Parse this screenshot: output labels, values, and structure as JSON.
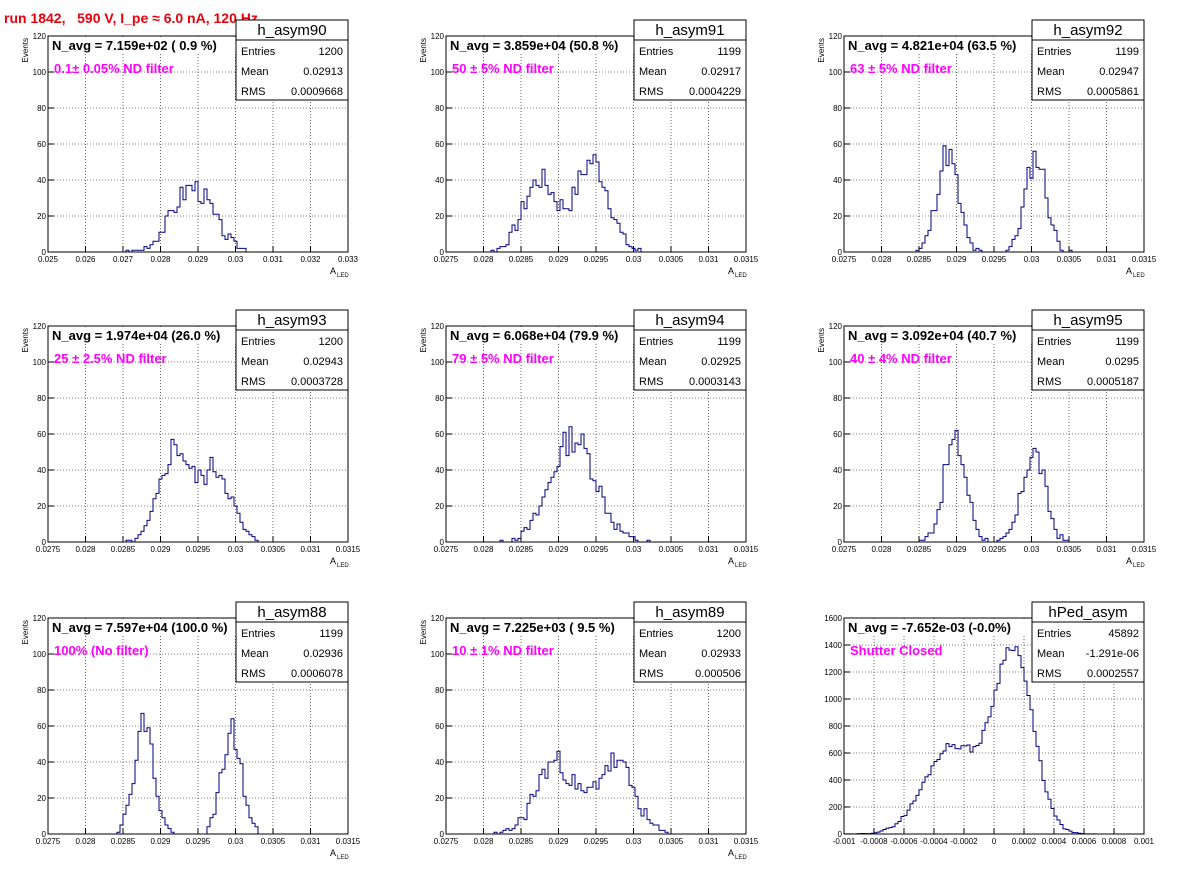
{
  "canvas_title": "run 1842,   590 V, I_pe ≈ 6.0 nA, 120 Hz",
  "colors": {
    "title": "#e8000b",
    "annotation": "#ff00ff",
    "hist_line": "#000080",
    "frame": "#000000"
  },
  "chart_data": [
    {
      "type": "histogram",
      "histname": "h_asym90",
      "title_text": "N_avg = 7.159e+02 ( 0.9 %)",
      "annotation": "0.1± 0.05% ND filter",
      "stats": {
        "entries_label": "Entries",
        "entries": "1200",
        "mean_label": "Mean",
        "mean": "0.02913",
        "rms_label": "RMS",
        "rms": "0.0009668"
      },
      "ylabel": "Events",
      "xlabel": "A",
      "xlabel_sub": "LED",
      "xlim": [
        0.025,
        0.033
      ],
      "ylim": [
        0,
        120
      ],
      "xticks": [
        0.025,
        0.026,
        0.027,
        0.028,
        0.029,
        0.03,
        0.031,
        0.032,
        0.033
      ],
      "xtick_labels": [
        "0.025",
        "0.026",
        "0.027",
        "0.028",
        "0.029",
        "0.03",
        "0.031",
        "0.032",
        "0.033"
      ],
      "yticks": [
        0,
        20,
        40,
        60,
        80,
        100,
        120
      ],
      "ytick_labels": [
        "0",
        "20",
        "40",
        "60",
        "80",
        "100",
        "120"
      ],
      "peaks": [
        {
          "mu": 0.02885,
          "sigma": 0.00055,
          "amp": 36
        }
      ],
      "noise_seed": 3,
      "bins": 100
    },
    {
      "type": "histogram",
      "histname": "h_asym91",
      "title_text": "N_avg = 3.859e+04 (50.8 %)",
      "annotation": "50 ± 5% ND filter",
      "stats": {
        "entries_label": "Entries",
        "entries": "1199",
        "mean_label": "Mean",
        "mean": "0.02917",
        "rms_label": "RMS",
        "rms": "0.0004229"
      },
      "ylabel": "Events",
      "xlabel": "A",
      "xlabel_sub": "LED",
      "xlim": [
        0.0275,
        0.0315
      ],
      "ylim": [
        0,
        120
      ],
      "xticks": [
        0.0275,
        0.028,
        0.0285,
        0.029,
        0.0295,
        0.03,
        0.0305,
        0.031,
        0.0315
      ],
      "xtick_labels": [
        "0.0275",
        "0.028",
        "0.0285",
        "0.029",
        "0.0295",
        "0.03",
        "0.0305",
        "0.031",
        "0.0315"
      ],
      "yticks": [
        0,
        20,
        40,
        60,
        80,
        100,
        120
      ],
      "ytick_labels": [
        "0",
        "20",
        "40",
        "60",
        "80",
        "100",
        "120"
      ],
      "peaks": [
        {
          "mu": 0.02875,
          "sigma": 0.00022,
          "amp": 40
        },
        {
          "mu": 0.02945,
          "sigma": 0.00022,
          "amp": 50
        }
      ],
      "noise_seed": 7,
      "bins": 100
    },
    {
      "type": "histogram",
      "histname": "h_asym92",
      "title_text": "N_avg = 4.821e+04 (63.5 %)",
      "annotation": "63 ± 5% ND filter",
      "stats": {
        "entries_label": "Entries",
        "entries": "1199",
        "mean_label": "Mean",
        "mean": "0.02947",
        "rms_label": "RMS",
        "rms": "0.0005861"
      },
      "ylabel": "Events",
      "xlabel": "A",
      "xlabel_sub": "LED",
      "xlim": [
        0.0275,
        0.0315
      ],
      "ylim": [
        0,
        120
      ],
      "xticks": [
        0.0275,
        0.028,
        0.0285,
        0.029,
        0.0295,
        0.03,
        0.0305,
        0.031,
        0.0315
      ],
      "xtick_labels": [
        "0.0275",
        "0.028",
        "0.0285",
        "0.029",
        "0.0295",
        "0.03",
        "0.0305",
        "0.031",
        "0.0315"
      ],
      "yticks": [
        0,
        20,
        40,
        60,
        80,
        100,
        120
      ],
      "ytick_labels": [
        "0",
        "20",
        "40",
        "60",
        "80",
        "100",
        "120"
      ],
      "peaks": [
        {
          "mu": 0.02888,
          "sigma": 0.00014,
          "amp": 55
        },
        {
          "mu": 0.03006,
          "sigma": 0.00014,
          "amp": 53
        }
      ],
      "noise_seed": 11,
      "bins": 100
    },
    {
      "type": "histogram",
      "histname": "h_asym93",
      "title_text": "N_avg = 1.974e+04 (26.0 %)",
      "annotation": "25 ± 2.5% ND filter",
      "stats": {
        "entries_label": "Entries",
        "entries": "1200",
        "mean_label": "Mean",
        "mean": "0.02943",
        "rms_label": "RMS",
        "rms": "0.0003728"
      },
      "ylabel": "Events",
      "xlabel": "A",
      "xlabel_sub": "LED",
      "xlim": [
        0.0275,
        0.0315
      ],
      "ylim": [
        0,
        120
      ],
      "xticks": [
        0.0275,
        0.028,
        0.0285,
        0.029,
        0.0295,
        0.03,
        0.0305,
        0.031,
        0.0315
      ],
      "xtick_labels": [
        "0.0275",
        "0.028",
        "0.0285",
        "0.029",
        "0.0295",
        "0.03",
        "0.0305",
        "0.031",
        "0.0315"
      ],
      "yticks": [
        0,
        20,
        40,
        60,
        80,
        100,
        120
      ],
      "ytick_labels": [
        "0",
        "20",
        "40",
        "60",
        "80",
        "100",
        "120"
      ],
      "peaks": [
        {
          "mu": 0.0292,
          "sigma": 0.0002,
          "amp": 52
        },
        {
          "mu": 0.02975,
          "sigma": 0.0002,
          "amp": 40
        }
      ],
      "noise_seed": 5,
      "bins": 100
    },
    {
      "type": "histogram",
      "histname": "h_asym94",
      "title_text": "N_avg = 6.068e+04 (79.9 %)",
      "annotation": "79 ± 5% ND filter",
      "stats": {
        "entries_label": "Entries",
        "entries": "1199",
        "mean_label": "Mean",
        "mean": "0.02925",
        "rms_label": "RMS",
        "rms": "0.0003143"
      },
      "ylabel": "Events",
      "xlabel": "A",
      "xlabel_sub": "LED",
      "xlim": [
        0.0275,
        0.0315
      ],
      "ylim": [
        0,
        120
      ],
      "xticks": [
        0.0275,
        0.028,
        0.0285,
        0.029,
        0.0295,
        0.03,
        0.0305,
        0.031,
        0.0315
      ],
      "xtick_labels": [
        "0.0275",
        "0.028",
        "0.0285",
        "0.029",
        "0.0295",
        "0.03",
        "0.0305",
        "0.031",
        "0.0315"
      ],
      "yticks": [
        0,
        20,
        40,
        60,
        80,
        100,
        120
      ],
      "ytick_labels": [
        "0",
        "20",
        "40",
        "60",
        "80",
        "100",
        "120"
      ],
      "peaks": [
        {
          "mu": 0.0292,
          "sigma": 0.0003,
          "amp": 58
        }
      ],
      "noise_seed": 13,
      "bins": 100
    },
    {
      "type": "histogram",
      "histname": "h_asym95",
      "title_text": "N_avg = 3.092e+04 (40.7 %)",
      "annotation": "40 ± 4% ND filter",
      "stats": {
        "entries_label": "Entries",
        "entries": "1199",
        "mean_label": "Mean",
        "mean": "0.0295",
        "rms_label": "RMS",
        "rms": "0.0005187"
      },
      "ylabel": "Events",
      "xlabel": "A",
      "xlabel_sub": "LED",
      "xlim": [
        0.0275,
        0.0315
      ],
      "ylim": [
        0,
        120
      ],
      "xticks": [
        0.0275,
        0.028,
        0.0285,
        0.029,
        0.0295,
        0.03,
        0.0305,
        0.031,
        0.0315
      ],
      "xtick_labels": [
        "0.0275",
        "0.028",
        "0.0285",
        "0.029",
        "0.0295",
        "0.03",
        "0.0305",
        "0.031",
        "0.0315"
      ],
      "yticks": [
        0,
        20,
        40,
        60,
        80,
        100,
        120
      ],
      "ytick_labels": [
        "0",
        "20",
        "40",
        "60",
        "80",
        "100",
        "120"
      ],
      "peaks": [
        {
          "mu": 0.02898,
          "sigma": 0.00015,
          "amp": 56
        },
        {
          "mu": 0.03003,
          "sigma": 0.00015,
          "amp": 50
        }
      ],
      "noise_seed": 17,
      "bins": 100
    },
    {
      "type": "histogram",
      "histname": "h_asym88",
      "title_text": "N_avg = 7.597e+04 (100.0 %)",
      "annotation": "100% (No filter)",
      "stats": {
        "entries_label": "Entries",
        "entries": "1199",
        "mean_label": "Mean",
        "mean": "0.02936",
        "rms_label": "RMS",
        "rms": "0.0006078"
      },
      "ylabel": "Events",
      "xlabel": "A",
      "xlabel_sub": "LED",
      "xlim": [
        0.0275,
        0.0315
      ],
      "ylim": [
        0,
        120
      ],
      "xticks": [
        0.0275,
        0.028,
        0.0285,
        0.029,
        0.0295,
        0.03,
        0.0305,
        0.031,
        0.0315
      ],
      "xtick_labels": [
        "0.0275",
        "0.028",
        "0.0285",
        "0.029",
        "0.0295",
        "0.03",
        "0.0305",
        "0.031",
        "0.0315"
      ],
      "yticks": [
        0,
        20,
        40,
        60,
        80,
        100,
        120
      ],
      "ytick_labels": [
        "0",
        "20",
        "40",
        "60",
        "80",
        "100",
        "120"
      ],
      "peaks": [
        {
          "mu": 0.02878,
          "sigma": 0.00013,
          "amp": 62
        },
        {
          "mu": 0.02995,
          "sigma": 0.00013,
          "amp": 57
        }
      ],
      "noise_seed": 19,
      "bins": 100
    },
    {
      "type": "histogram",
      "histname": "h_asym89",
      "title_text": "N_avg = 7.225e+03 ( 9.5 %)",
      "annotation": "10 ± 1% ND filter",
      "stats": {
        "entries_label": "Entries",
        "entries": "1200",
        "mean_label": "Mean",
        "mean": "0.02933",
        "rms_label": "RMS",
        "rms": "0.000506"
      },
      "ylabel": "Events",
      "xlabel": "A",
      "xlabel_sub": "LED",
      "xlim": [
        0.0275,
        0.0315
      ],
      "ylim": [
        0,
        120
      ],
      "xticks": [
        0.0275,
        0.028,
        0.0285,
        0.029,
        0.0295,
        0.03,
        0.0305,
        0.031,
        0.0315
      ],
      "xtick_labels": [
        "0.0275",
        "0.028",
        "0.0285",
        "0.029",
        "0.0295",
        "0.03",
        "0.0305",
        "0.031",
        "0.0315"
      ],
      "yticks": [
        0,
        20,
        40,
        60,
        80,
        100,
        120
      ],
      "ytick_labels": [
        "0",
        "20",
        "40",
        "60",
        "80",
        "100",
        "120"
      ],
      "peaks": [
        {
          "mu": 0.02895,
          "sigma": 0.00025,
          "amp": 40
        },
        {
          "mu": 0.02975,
          "sigma": 0.00025,
          "amp": 40
        }
      ],
      "noise_seed": 23,
      "bins": 100
    },
    {
      "type": "histogram",
      "histname": "hPed_asym",
      "title_text": "N_avg = -7.652e-03 (-0.0%)",
      "annotation": "Shutter Closed",
      "stats": {
        "entries_label": "Entries",
        "entries": "45892",
        "mean_label": "Mean",
        "mean": "-1.291e-06",
        "rms_label": "RMS",
        "rms": "0.0002557"
      },
      "ylabel": "",
      "xlabel": "",
      "xlabel_sub": "",
      "xlim": [
        -0.001,
        0.001
      ],
      "ylim": [
        0,
        1600
      ],
      "xticks": [
        -0.001,
        -0.0008,
        -0.0006,
        -0.0004,
        -0.0002,
        0,
        0.0002,
        0.0004,
        0.0006,
        0.0008,
        0.001
      ],
      "xtick_labels": [
        "-0.001",
        "-0.0008",
        "-0.0006",
        "-0.0004",
        "-0.0002",
        "0",
        "0.0002",
        "0.0004",
        "0.0006",
        "0.0008",
        "0.001"
      ],
      "yticks": [
        0,
        200,
        400,
        600,
        800,
        1000,
        1200,
        1400,
        1600
      ],
      "ytick_labels": [
        "0",
        "200",
        "400",
        "600",
        "800",
        "1000",
        "1200",
        "1400",
        "1600"
      ],
      "peaks": [
        {
          "mu": -0.00028,
          "sigma": 0.00018,
          "amp": 650
        },
        {
          "mu": 0.00013,
          "sigma": 0.00013,
          "amp": 1350
        }
      ],
      "noise_seed": 29,
      "bins": 100
    }
  ]
}
